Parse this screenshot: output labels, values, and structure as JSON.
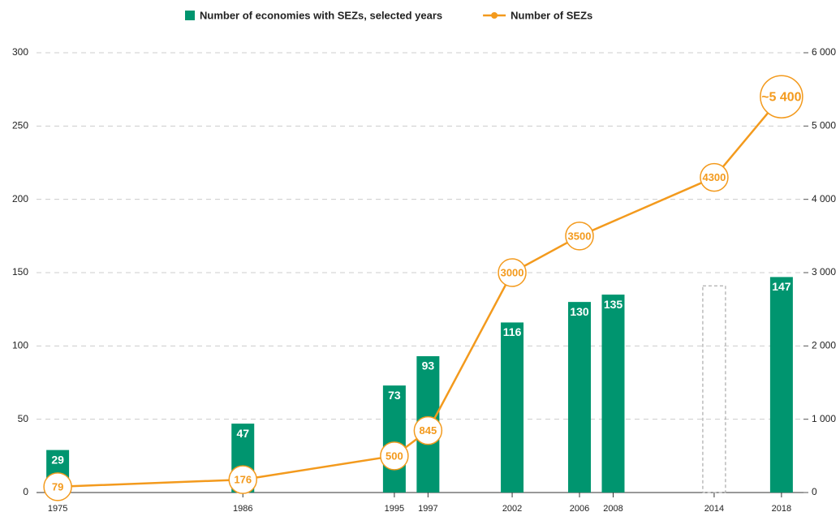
{
  "chart_data": {
    "type": "bar",
    "xlim": [
      1973.5,
      2019.5
    ],
    "xticks": [
      1975,
      1986,
      1995,
      1997,
      2002,
      2006,
      2008,
      2014,
      2018
    ],
    "ylim": [
      0,
      300
    ],
    "yticks": [
      0,
      50,
      100,
      150,
      200,
      250,
      300
    ],
    "y2lim": [
      0,
      6000
    ],
    "y2ticks": [
      0,
      {
        "value": 1000,
        "label": "1 000"
      },
      {
        "value": 2000,
        "label": "2 000"
      },
      {
        "value": 3000,
        "label": "3 000"
      },
      {
        "value": 4000,
        "label": "4 000"
      },
      {
        "value": 5000,
        "label": "5 000"
      },
      {
        "value": 6000,
        "label": "6 000"
      }
    ],
    "grid": true,
    "legend": "top",
    "series": [
      {
        "name": "Number of economies with SEZs, selected years",
        "type": "bar",
        "color": "#00956f",
        "x": [
          1975,
          1986,
          1995,
          1997,
          2002,
          2006,
          2008,
          2014,
          2018
        ],
        "values": [
          29,
          47,
          73,
          93,
          116,
          130,
          135,
          141,
          147
        ],
        "outlined": [
          false,
          false,
          false,
          false,
          false,
          false,
          false,
          true,
          false
        ]
      },
      {
        "name": "Number of SEZs",
        "type": "line",
        "axis": "y2",
        "color": "#f39a1d",
        "x": [
          1975,
          1986,
          1995,
          1997,
          2002,
          2006,
          2014,
          2018
        ],
        "values": [
          79,
          176,
          500,
          845,
          3000,
          3500,
          4300,
          5400
        ],
        "value_labels": [
          "79",
          "176",
          "500",
          "845",
          "3000",
          "3500",
          "4300",
          "~5 400"
        ]
      }
    ]
  }
}
